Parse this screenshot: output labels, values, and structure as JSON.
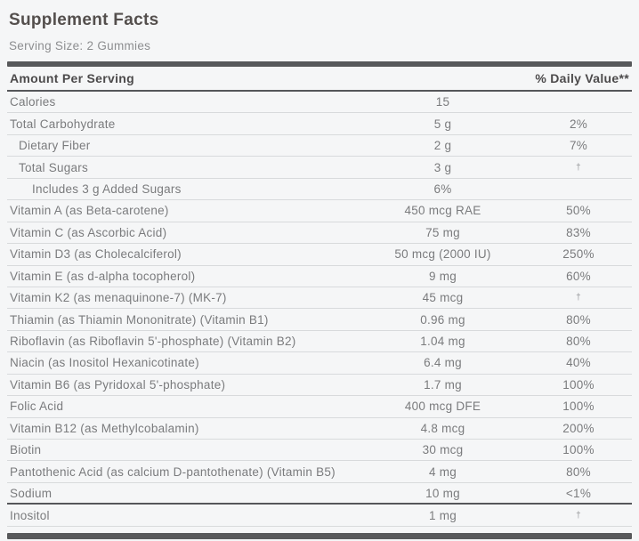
{
  "header": {
    "title": "Supplement Facts",
    "serving_size": "Serving Size: 2 Gummies"
  },
  "table": {
    "header": {
      "left": "Amount Per Serving",
      "right": "% Daily Value**"
    },
    "footnote_symbol": "†",
    "rows": [
      {
        "label": "Calories",
        "amount": "15",
        "dv": "",
        "indent": 0
      },
      {
        "label": "Total Carbohydrate",
        "amount": "5 g",
        "dv": "2%",
        "indent": 0
      },
      {
        "label": "Dietary Fiber",
        "amount": "2 g",
        "dv": "7%",
        "indent": 1
      },
      {
        "label": "Total Sugars",
        "amount": "3 g",
        "dv": "†",
        "indent": 1
      },
      {
        "label": "Includes 3 g Added Sugars",
        "amount": "6%",
        "dv": "",
        "indent": 2
      },
      {
        "label": "Vitamin A (as Beta-carotene)",
        "amount": "450 mcg RAE",
        "dv": "50%",
        "indent": 0
      },
      {
        "label": "Vitamin C (as Ascorbic Acid)",
        "amount": "75 mg",
        "dv": "83%",
        "indent": 0
      },
      {
        "label": "Vitamin D3 (as Cholecalciferol)",
        "amount": "50 mcg (2000 IU)",
        "dv": "250%",
        "indent": 0
      },
      {
        "label": "Vitamin E (as d-alpha tocopherol)",
        "amount": "9 mg",
        "dv": "60%",
        "indent": 0
      },
      {
        "label": "Vitamin K2 (as menaquinone-7) (MK-7)",
        "amount": "45 mcg",
        "dv": "†",
        "indent": 0
      },
      {
        "label": "Thiamin (as Thiamin Mononitrate) (Vitamin B1)",
        "amount": "0.96 mg",
        "dv": "80%",
        "indent": 0
      },
      {
        "label": "Riboflavin (as Riboflavin 5'-phosphate) (Vitamin B2)",
        "amount": "1.04 mg",
        "dv": "80%",
        "indent": 0
      },
      {
        "label": "Niacin (as Inositol Hexanicotinate)",
        "amount": "6.4 mg",
        "dv": "40%",
        "indent": 0
      },
      {
        "label": "Vitamin B6 (as Pyridoxal 5'-phosphate)",
        "amount": "1.7 mg",
        "dv": "100%",
        "indent": 0
      },
      {
        "label": "Folic Acid",
        "amount": "400 mcg DFE",
        "dv": "100%",
        "indent": 0
      },
      {
        "label": "Vitamin B12 (as Methylcobalamin)",
        "amount": "4.8 mcg",
        "dv": "200%",
        "indent": 0
      },
      {
        "label": "Biotin",
        "amount": "30 mcg",
        "dv": "100%",
        "indent": 0
      },
      {
        "label": "Pantothenic Acid (as calcium D-pantothenate) (Vitamin B5)",
        "amount": "4 mg",
        "dv": "80%",
        "indent": 0
      },
      {
        "label": "Sodium",
        "amount": "10 mg",
        "dv": "<1%",
        "indent": 0,
        "heavy_bottom": true
      },
      {
        "label": "Inositol",
        "amount": "1 mg",
        "dv": "†",
        "indent": 0
      }
    ]
  },
  "colors": {
    "background": "#f5f6f7",
    "bar": "#58595b",
    "title_text": "#544f4d",
    "body_text": "#7a7b7d",
    "separator": "#d8dadc"
  }
}
